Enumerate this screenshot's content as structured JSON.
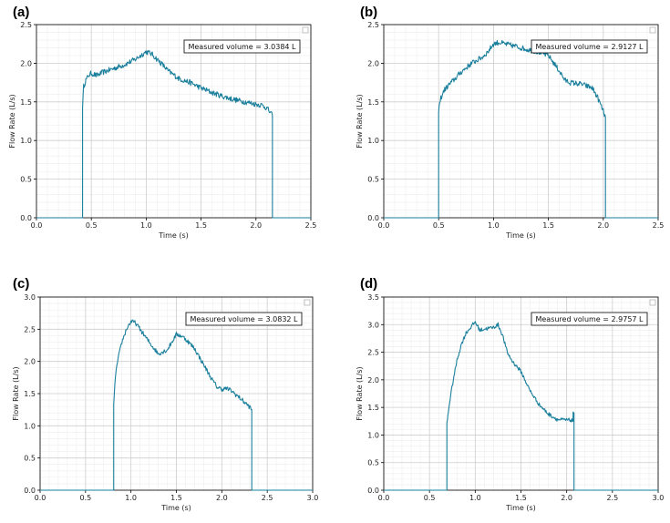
{
  "chart_data": [
    {
      "panel": "(a)",
      "type": "line",
      "title": "",
      "xlabel": "Time (s)",
      "ylabel": "Flow Rate (L/s)",
      "xlim": [
        0.0,
        2.5
      ],
      "ylim": [
        0.0,
        2.5
      ],
      "xticks": [
        "0.0",
        "0.5",
        "1.0",
        "1.5",
        "2.0",
        "2.5"
      ],
      "yticks": [
        "0.0",
        "0.5",
        "1.0",
        "1.5",
        "2.0",
        "2.5"
      ],
      "annotation": "Measured volume = 3.0384 L",
      "grid": true,
      "color": "#1a7f9c",
      "series": [
        {
          "name": "flow",
          "x": [
            0.0,
            0.42,
            0.42,
            0.43,
            0.45,
            0.48,
            0.5,
            0.55,
            0.6,
            0.7,
            0.8,
            0.9,
            0.95,
            1.0,
            1.05,
            1.1,
            1.15,
            1.2,
            1.3,
            1.4,
            1.5,
            1.6,
            1.7,
            1.8,
            1.9,
            2.0,
            2.05,
            2.1,
            2.15,
            2.15,
            2.2,
            2.5
          ],
          "y": [
            0.0,
            0.0,
            1.45,
            1.7,
            1.78,
            1.85,
            1.87,
            1.84,
            1.88,
            1.93,
            1.98,
            2.05,
            2.1,
            2.15,
            2.12,
            2.05,
            1.98,
            1.9,
            1.8,
            1.75,
            1.68,
            1.62,
            1.57,
            1.53,
            1.5,
            1.47,
            1.46,
            1.42,
            1.32,
            0.0,
            0.0,
            0.0
          ]
        }
      ]
    },
    {
      "panel": "(b)",
      "type": "line",
      "title": "",
      "xlabel": "Time (s)",
      "ylabel": "Flow Rate (L/s)",
      "xlim": [
        0.0,
        2.5
      ],
      "ylim": [
        0.0,
        2.5
      ],
      "xticks": [
        "0.0",
        "0.5",
        "1.0",
        "1.5",
        "2.0",
        "2.5"
      ],
      "yticks": [
        "0.0",
        "0.5",
        "1.0",
        "1.5",
        "2.0",
        "2.5"
      ],
      "annotation": "Measured volume = 2.9127 L",
      "grid": true,
      "color": "#1a7f9c",
      "series": [
        {
          "name": "flow",
          "x": [
            0.0,
            0.5,
            0.5,
            0.52,
            0.55,
            0.6,
            0.65,
            0.7,
            0.8,
            0.9,
            0.95,
            1.0,
            1.05,
            1.1,
            1.2,
            1.3,
            1.4,
            1.5,
            1.55,
            1.6,
            1.65,
            1.7,
            1.8,
            1.9,
            1.95,
            2.0,
            2.02,
            2.02,
            2.1,
            2.5
          ],
          "y": [
            0.0,
            0.0,
            1.4,
            1.55,
            1.65,
            1.73,
            1.8,
            1.88,
            2.0,
            2.08,
            2.15,
            2.25,
            2.27,
            2.25,
            2.22,
            2.18,
            2.15,
            2.1,
            2.0,
            1.9,
            1.78,
            1.75,
            1.73,
            1.68,
            1.55,
            1.38,
            1.3,
            0.0,
            0.0,
            0.0
          ]
        }
      ]
    },
    {
      "panel": "(c)",
      "type": "line",
      "title": "",
      "xlabel": "Time (s)",
      "ylabel": "Flow Rate (L/s)",
      "xlim": [
        0.0,
        3.0
      ],
      "ylim": [
        0.0,
        3.0
      ],
      "xticks": [
        "0.0",
        "0.5",
        "1.0",
        "1.5",
        "2.0",
        "2.5",
        "3.0"
      ],
      "yticks": [
        "0.0",
        "0.5",
        "1.0",
        "1.5",
        "2.0",
        "2.5",
        "3.0"
      ],
      "annotation": "Measured volume = 3.0832 L",
      "grid": true,
      "color": "#1a7f9c",
      "series": [
        {
          "name": "flow",
          "x": [
            0.0,
            0.81,
            0.81,
            0.83,
            0.86,
            0.9,
            0.95,
            1.0,
            1.05,
            1.1,
            1.2,
            1.3,
            1.4,
            1.45,
            1.5,
            1.55,
            1.6,
            1.7,
            1.8,
            1.9,
            1.95,
            2.0,
            2.05,
            2.1,
            2.2,
            2.3,
            2.33,
            2.33,
            2.4,
            3.0
          ],
          "y": [
            0.0,
            0.0,
            1.3,
            1.8,
            2.05,
            2.3,
            2.5,
            2.62,
            2.6,
            2.5,
            2.3,
            2.12,
            2.18,
            2.3,
            2.42,
            2.4,
            2.35,
            2.2,
            1.95,
            1.7,
            1.6,
            1.57,
            1.58,
            1.55,
            1.43,
            1.3,
            1.25,
            0.0,
            0.0,
            0.0
          ]
        }
      ]
    },
    {
      "panel": "(d)",
      "type": "line",
      "title": "",
      "xlabel": "Time (s)",
      "ylabel": "Flow Rate (L/s)",
      "xlim": [
        0.0,
        3.0
      ],
      "ylim": [
        0.0,
        3.5
      ],
      "xticks": [
        "0.0",
        "0.5",
        "1.0",
        "1.5",
        "2.0",
        "2.5",
        "3.0"
      ],
      "yticks": [
        "0.0",
        "0.5",
        "1.0",
        "1.5",
        "2.0",
        "2.5",
        "3.0",
        "3.5"
      ],
      "annotation": "Measured volume = 2.9757 L",
      "grid": true,
      "color": "#1a7f9c",
      "series": [
        {
          "name": "flow",
          "x": [
            0.0,
            0.69,
            0.69,
            0.72,
            0.76,
            0.8,
            0.85,
            0.9,
            0.95,
            1.0,
            1.05,
            1.1,
            1.2,
            1.25,
            1.3,
            1.35,
            1.4,
            1.5,
            1.6,
            1.7,
            1.8,
            1.9,
            2.0,
            2.05,
            2.07,
            2.07,
            2.08,
            2.08,
            2.2,
            3.0
          ],
          "y": [
            0.0,
            0.0,
            1.2,
            1.6,
            2.0,
            2.35,
            2.65,
            2.85,
            2.95,
            3.05,
            2.9,
            2.92,
            2.95,
            3.0,
            2.8,
            2.5,
            2.35,
            2.15,
            1.8,
            1.55,
            1.38,
            1.28,
            1.27,
            1.27,
            1.25,
            1.43,
            1.4,
            0.0,
            0.0,
            0.0
          ]
        }
      ]
    }
  ]
}
